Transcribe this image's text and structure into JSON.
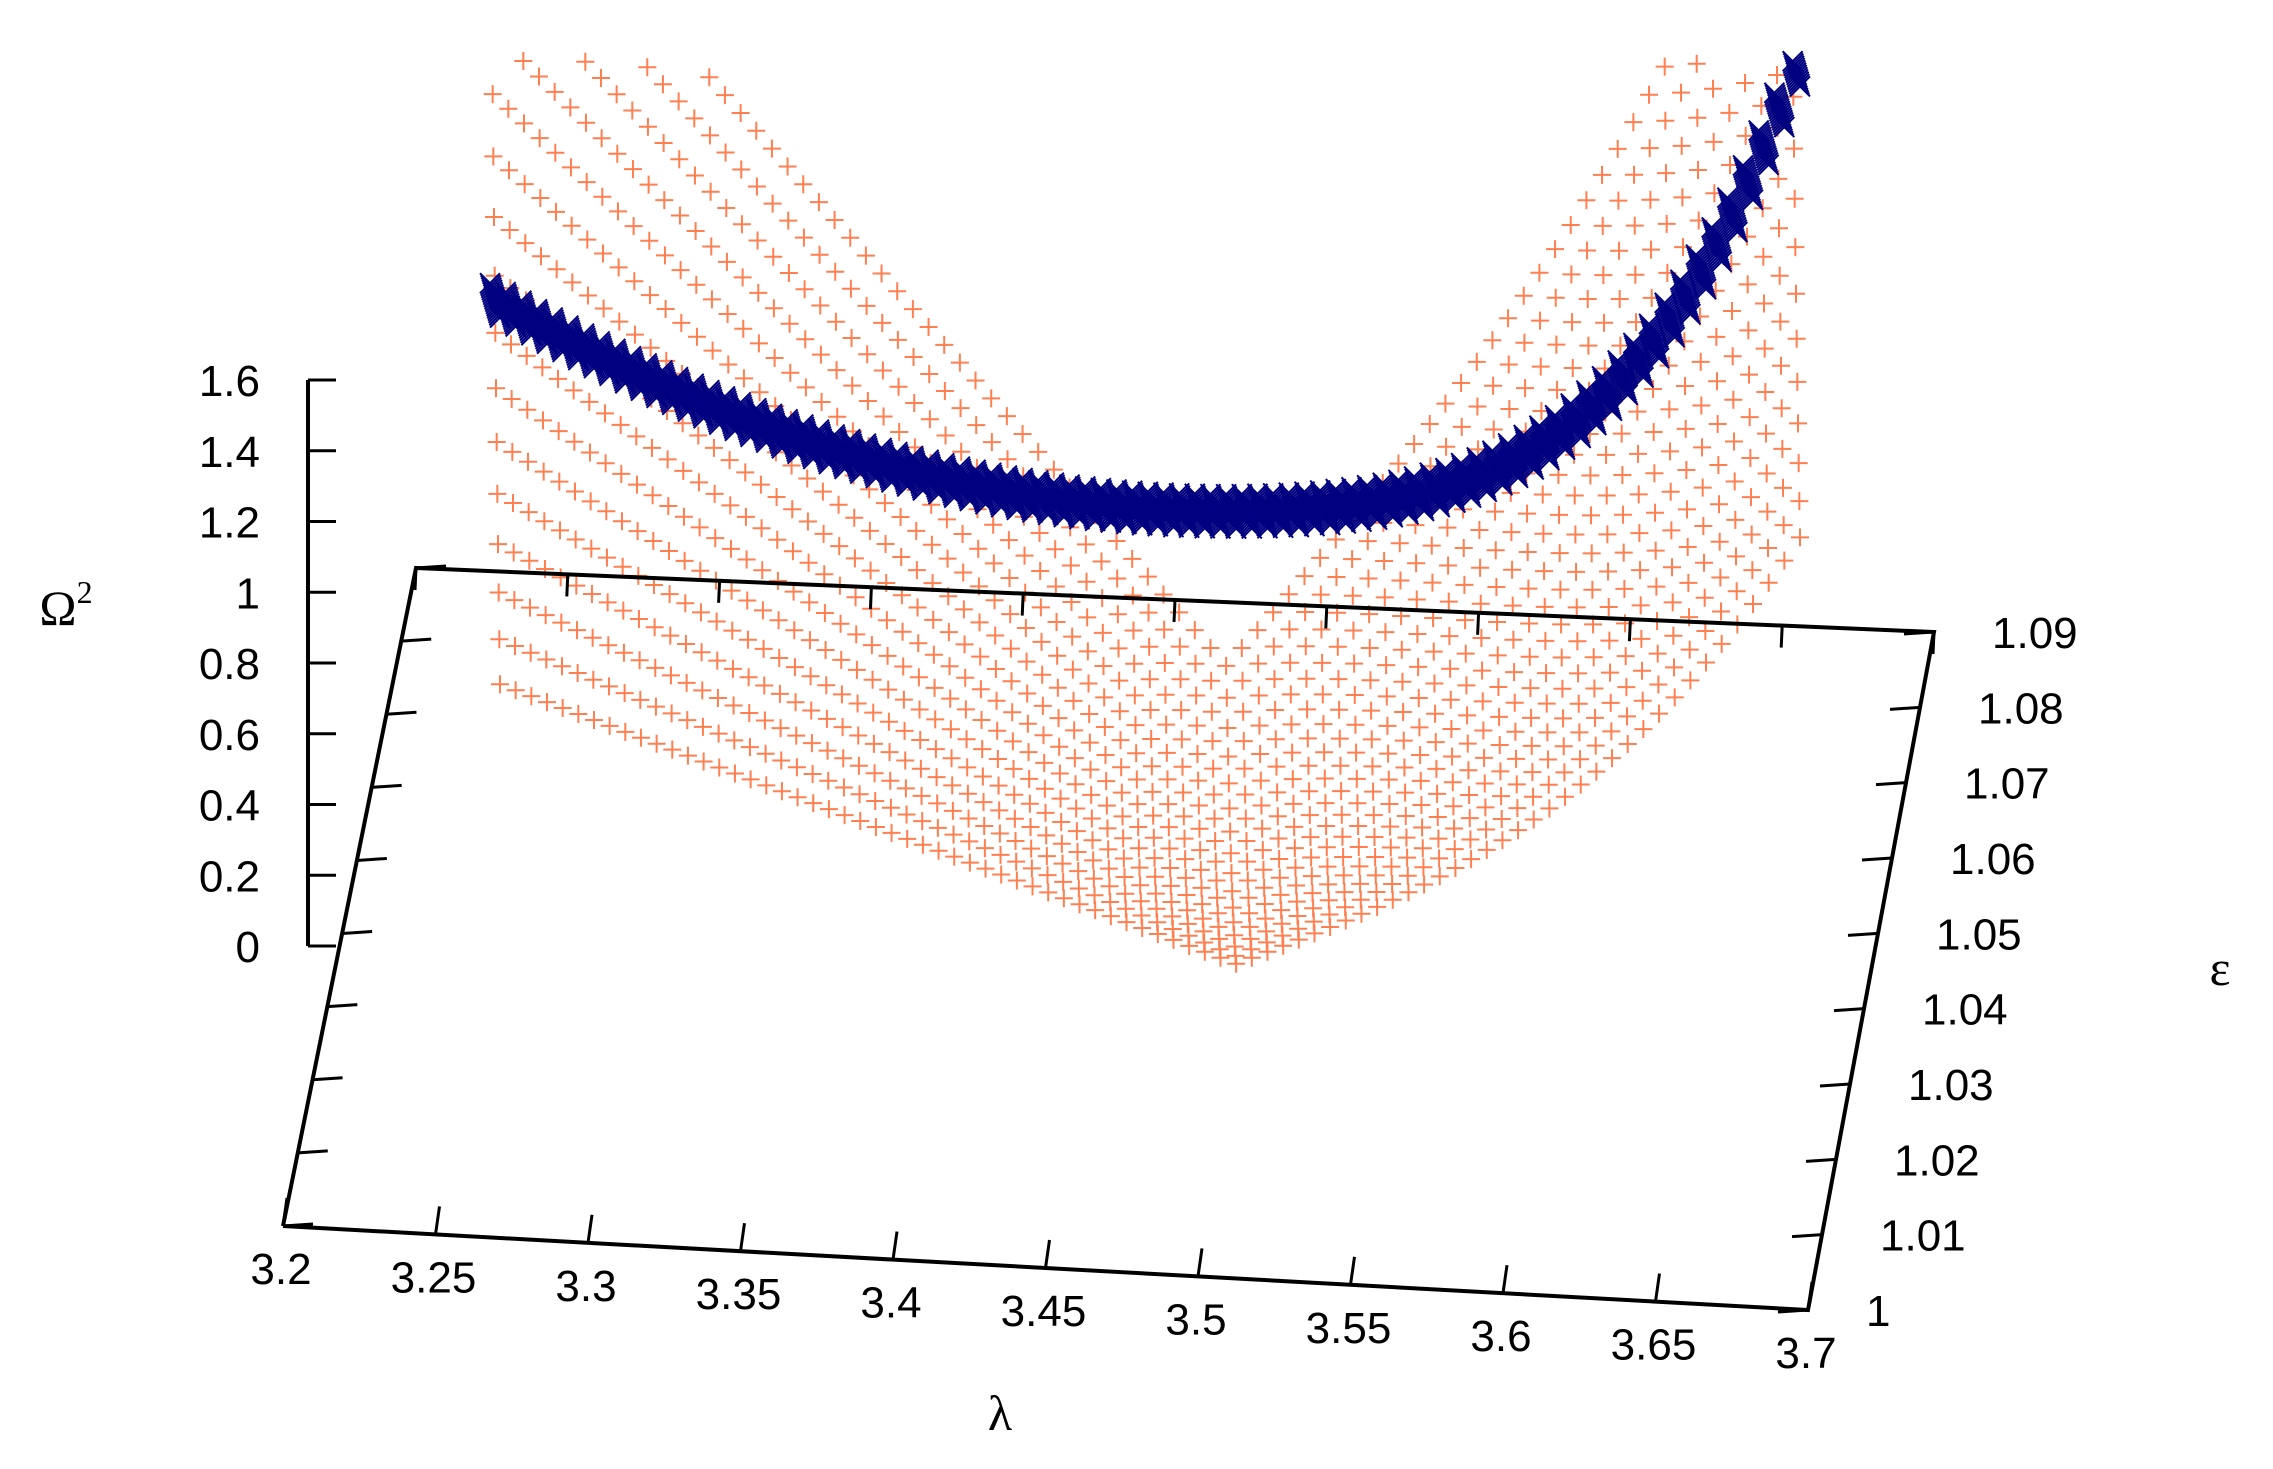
{
  "chart_data": {
    "type": "scatter",
    "title": "",
    "xlabel": "λ",
    "ylabel": "ε",
    "zlabel": "Ω",
    "zlabel_superscript": "2",
    "xlim": [
      3.2,
      3.7
    ],
    "ylim": [
      1.0,
      1.09
    ],
    "zlim": [
      0,
      1.6
    ],
    "x_ticks": [
      "3.2",
      "3.25",
      "3.3",
      "3.35",
      "3.4",
      "3.45",
      "3.5",
      "3.55",
      "3.6",
      "3.65",
      "3.7"
    ],
    "y_ticks": [
      "1",
      "1.01",
      "1.02",
      "1.03",
      "1.04",
      "1.05",
      "1.06",
      "1.07",
      "1.08",
      "1.09"
    ],
    "z_ticks": [
      "0",
      "0.2",
      "0.4",
      "0.6",
      "0.8",
      "1",
      "1.2",
      "1.4",
      "1.6"
    ],
    "grid": false,
    "legend": "none",
    "series": [
      {
        "marker": "plus",
        "color": "#ff7f50",
        "lambda_range": [
          3.27,
          3.685
        ],
        "points": [
          {
            "x": 3.27,
            "y": 1.09,
            "z": 1.62
          },
          {
            "x": 3.35,
            "y": 1.07,
            "z": 1.3
          },
          {
            "x": 3.45,
            "y": 1.04,
            "z": 0.5
          },
          {
            "x": 3.505,
            "y": 1.0,
            "z": -0.05
          },
          {
            "x": 3.55,
            "y": 1.03,
            "z": 0.45
          },
          {
            "x": 3.6,
            "y": 1.06,
            "z": 1.0
          },
          {
            "x": 3.685,
            "y": 1.09,
            "z": 2.6
          }
        ]
      },
      {
        "marker": "cross",
        "color": "#000080",
        "lambda_range": [
          3.27,
          3.685
        ],
        "points": [
          {
            "x": 3.27,
            "y": 1.09,
            "z": 1.78
          },
          {
            "x": 3.35,
            "y": 1.07,
            "z": 1.55
          },
          {
            "x": 3.45,
            "y": 1.04,
            "z": 1.3
          },
          {
            "x": 3.5,
            "y": 1.0,
            "z": 1.18
          },
          {
            "x": 3.55,
            "y": 1.03,
            "z": 1.3
          },
          {
            "x": 3.6,
            "y": 1.06,
            "z": 1.7
          },
          {
            "x": 3.685,
            "y": 1.09,
            "z": 3.5
          }
        ]
      }
    ]
  }
}
